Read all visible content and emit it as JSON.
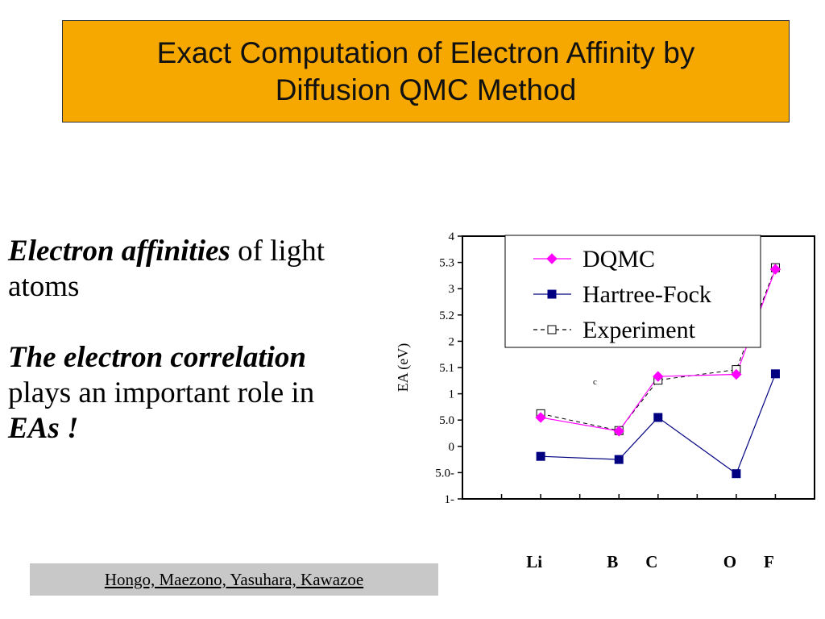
{
  "slide": {
    "title": "Exact Computation of Electron Affinity by\nDiffusion QMC Method",
    "left_text": {
      "p1_bold": "Electron affinities",
      "p1_rest": " of light atoms",
      "p2_bold1": "The electron correlation",
      "p2_rest": " plays an important role in ",
      "p2_bold2": "EAs !"
    },
    "credit": "Hongo, Maezono, Yasuhara, Kawazoe"
  },
  "colors": {
    "title_bg": "#f6a800",
    "dqmc": "#ff00ff",
    "hartree_fock": "#000080",
    "experiment": "#000000",
    "credit_bg": "#c8c8c8"
  },
  "chart_data": {
    "type": "line",
    "ylabel": "EA (eV)",
    "ytick_labels": [
      "4",
      "5.3",
      "3",
      "5.2",
      "2",
      "5.1",
      "1",
      "5.0",
      "0",
      "5.0-",
      "1-"
    ],
    "ylim": [
      -1,
      4
    ],
    "x_positions": [
      1,
      2,
      3,
      4,
      5,
      6,
      7,
      8,
      9
    ],
    "x_labels": [
      {
        "x": 2,
        "label": "Li"
      },
      {
        "x": 4,
        "label": "B"
      },
      {
        "x": 5,
        "label": "C"
      },
      {
        "x": 7,
        "label": "O"
      },
      {
        "x": 8,
        "label": "F"
      }
    ],
    "xlim": [
      0,
      9
    ],
    "series": [
      {
        "name": "DQMC",
        "marker": "diamond",
        "line": "solid",
        "x": [
          2,
          4,
          5,
          7,
          8
        ],
        "y": [
          0.55,
          0.29,
          1.33,
          1.37,
          3.37
        ]
      },
      {
        "name": "Hartree-Fock",
        "marker": "square-filled",
        "line": "solid",
        "x": [
          2,
          4,
          5,
          7,
          8
        ],
        "y": [
          -0.19,
          -0.25,
          0.55,
          -0.52,
          1.38
        ]
      },
      {
        "name": "Experiment",
        "marker": "square-open",
        "line": "dashed",
        "x": [
          2,
          4,
          5,
          7,
          8
        ],
        "y": [
          0.62,
          0.3,
          1.26,
          1.46,
          3.4
        ]
      }
    ],
    "annotation": "c",
    "legend_position": "top-right",
    "grid": false
  }
}
